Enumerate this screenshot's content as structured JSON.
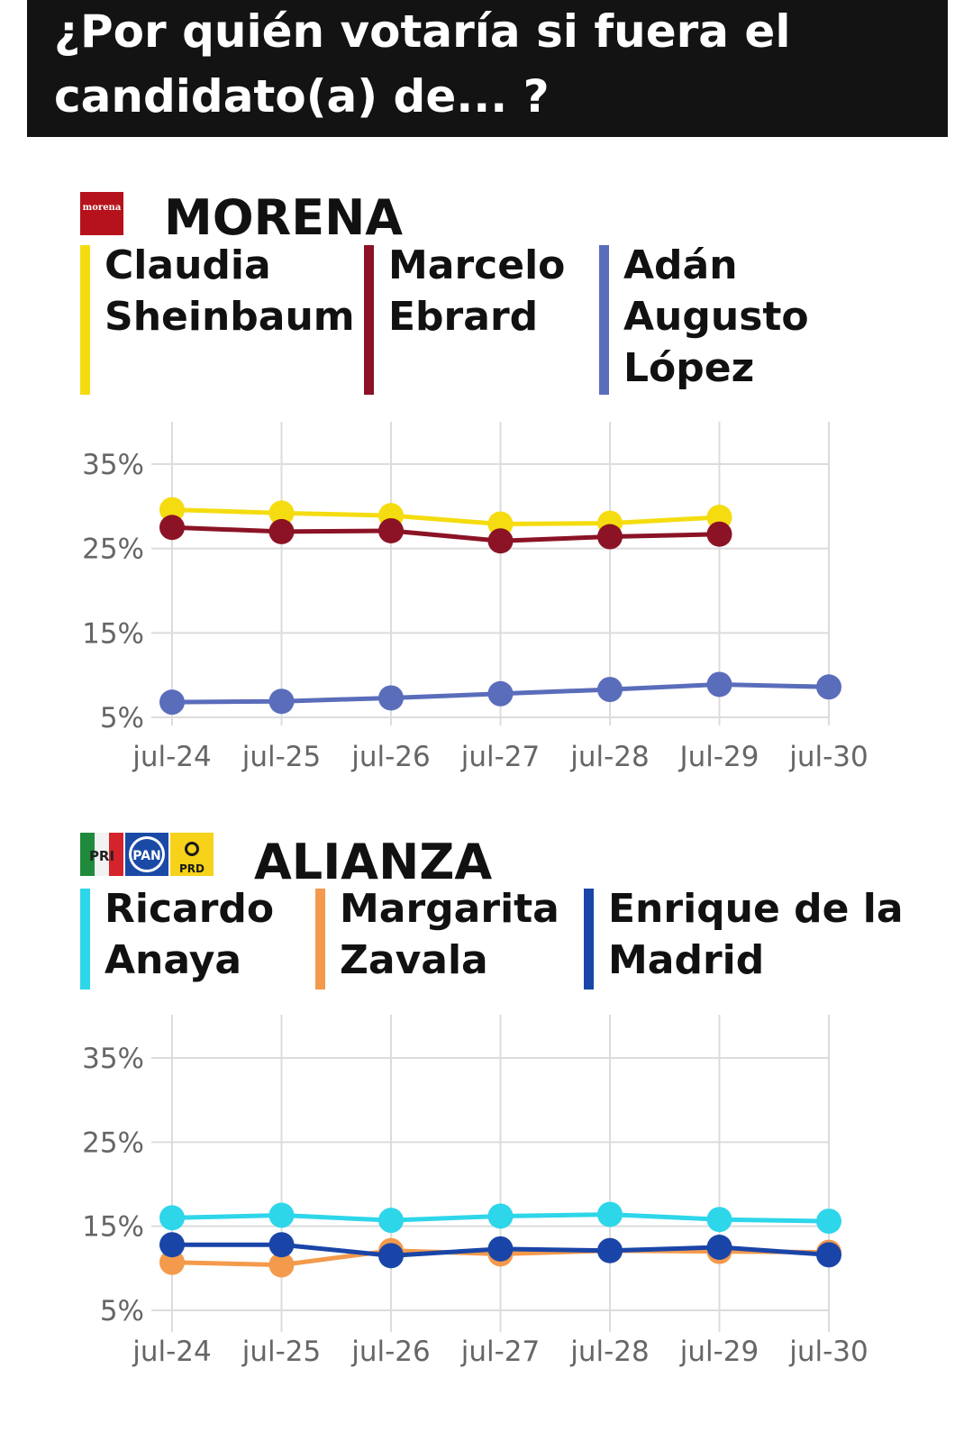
{
  "title": {
    "line1": "¿Por quién votaría si fuera el",
    "line2": "candidato(a) de... ?"
  },
  "colors": {
    "title_bg": "#131313",
    "sheinbaum": "#f5dc10",
    "ebrard": "#8b1325",
    "lopez": "#5a6dbb",
    "anaya": "#2ed6ea",
    "zavala": "#f49a4c",
    "madrid": "#1a45a8",
    "morena": "#b5121b"
  },
  "sections": {
    "morena": {
      "party": "MORENA",
      "logo_text": "morena",
      "candidates": [
        {
          "line1": "Claudia",
          "line2": "Sheinbaum",
          "line3": ""
        },
        {
          "line1": "Marcelo",
          "line2": "Ebrard",
          "line3": ""
        },
        {
          "line1": "Adán",
          "line2": "Augusto",
          "line3": "López"
        }
      ]
    },
    "alianza": {
      "party": "ALIANZA",
      "logos": [
        "PRI",
        "PAN",
        "PRD"
      ],
      "candidates": [
        {
          "line1": "Ricardo",
          "line2": "Anaya"
        },
        {
          "line1": "Margarita",
          "line2": "Zavala"
        },
        {
          "line1": "Enrique de la",
          "line2": "Madrid"
        }
      ]
    }
  },
  "chart_data": [
    {
      "type": "line",
      "categories": [
        "jul-24",
        "jul-25",
        "jul-26",
        "jul-27",
        "jul-28",
        "Jul-29",
        "jul-30"
      ],
      "ytick_labels": [
        "35%",
        "25%",
        "15%",
        "5%"
      ],
      "ylim": [
        5,
        35
      ],
      "grid": true,
      "series": [
        {
          "name": "Claudia Sheinbaum",
          "color": "#f5dc10",
          "values": [
            29.6,
            29.2,
            28.9,
            27.9,
            28.0,
            28.7,
            null
          ]
        },
        {
          "name": "Marcelo Ebrard",
          "color": "#8b1325",
          "values": [
            27.5,
            27.0,
            27.1,
            25.9,
            26.4,
            26.7,
            null
          ]
        },
        {
          "name": "Adán Augusto López",
          "color": "#5a6dbb",
          "values": [
            6.8,
            6.9,
            7.3,
            7.8,
            8.3,
            8.9,
            8.6
          ]
        }
      ]
    },
    {
      "type": "line",
      "categories": [
        "jul-24",
        "jul-25",
        "jul-26",
        "jul-27",
        "jul-28",
        "jul-29",
        "jul-30"
      ],
      "ytick_labels": [
        "35%",
        "25%",
        "15%",
        "5%"
      ],
      "ylim": [
        5,
        35
      ],
      "grid": true,
      "series": [
        {
          "name": "Ricardo Anaya",
          "color": "#2ed6ea",
          "values": [
            16.0,
            16.3,
            15.7,
            16.2,
            16.4,
            15.8,
            15.6
          ]
        },
        {
          "name": "Margarita Zavala",
          "color": "#f49a4c",
          "values": [
            10.7,
            10.4,
            12.1,
            11.7,
            12.1,
            12.0,
            11.9
          ]
        },
        {
          "name": "Enrique de la Madrid",
          "color": "#1a45a8",
          "values": [
            12.8,
            12.8,
            11.5,
            12.3,
            12.1,
            12.5,
            11.6
          ]
        }
      ]
    }
  ]
}
